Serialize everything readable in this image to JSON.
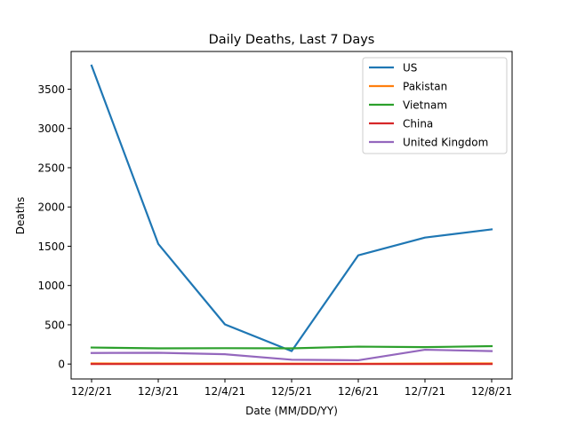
{
  "chart_data": {
    "type": "line",
    "title": "Daily Deaths, Last 7 Days",
    "xlabel": "Date (MM/DD/YY)",
    "ylabel": "Deaths",
    "x": [
      "12/2/21",
      "12/3/21",
      "12/4/21",
      "12/5/21",
      "12/6/21",
      "12/7/21",
      "12/8/21"
    ],
    "ylim": [
      -190,
      3980
    ],
    "yticks": [
      0,
      500,
      1000,
      1500,
      2000,
      2500,
      3000,
      3500
    ],
    "ytick_labels": [
      "0",
      "500",
      "1000",
      "1500",
      "2000",
      "2500",
      "3000",
      "3500"
    ],
    "grid": false,
    "legend": "top-right",
    "series": [
      {
        "name": "US",
        "color": "#1f77b4",
        "values": [
          3800,
          1530,
          505,
          165,
          1385,
          1610,
          1715
        ]
      },
      {
        "name": "Pakistan",
        "color": "#ff7f0e",
        "values": [
          8,
          6,
          6,
          5,
          4,
          7,
          8
        ]
      },
      {
        "name": "Vietnam",
        "color": "#2ca02c",
        "values": [
          210,
          200,
          202,
          200,
          222,
          215,
          228
        ]
      },
      {
        "name": "China",
        "color": "#d62728",
        "values": [
          0,
          0,
          0,
          0,
          0,
          0,
          0
        ]
      },
      {
        "name": "United Kingdom",
        "color": "#9467bd",
        "values": [
          141,
          143,
          125,
          55,
          48,
          182,
          165
        ]
      }
    ]
  }
}
